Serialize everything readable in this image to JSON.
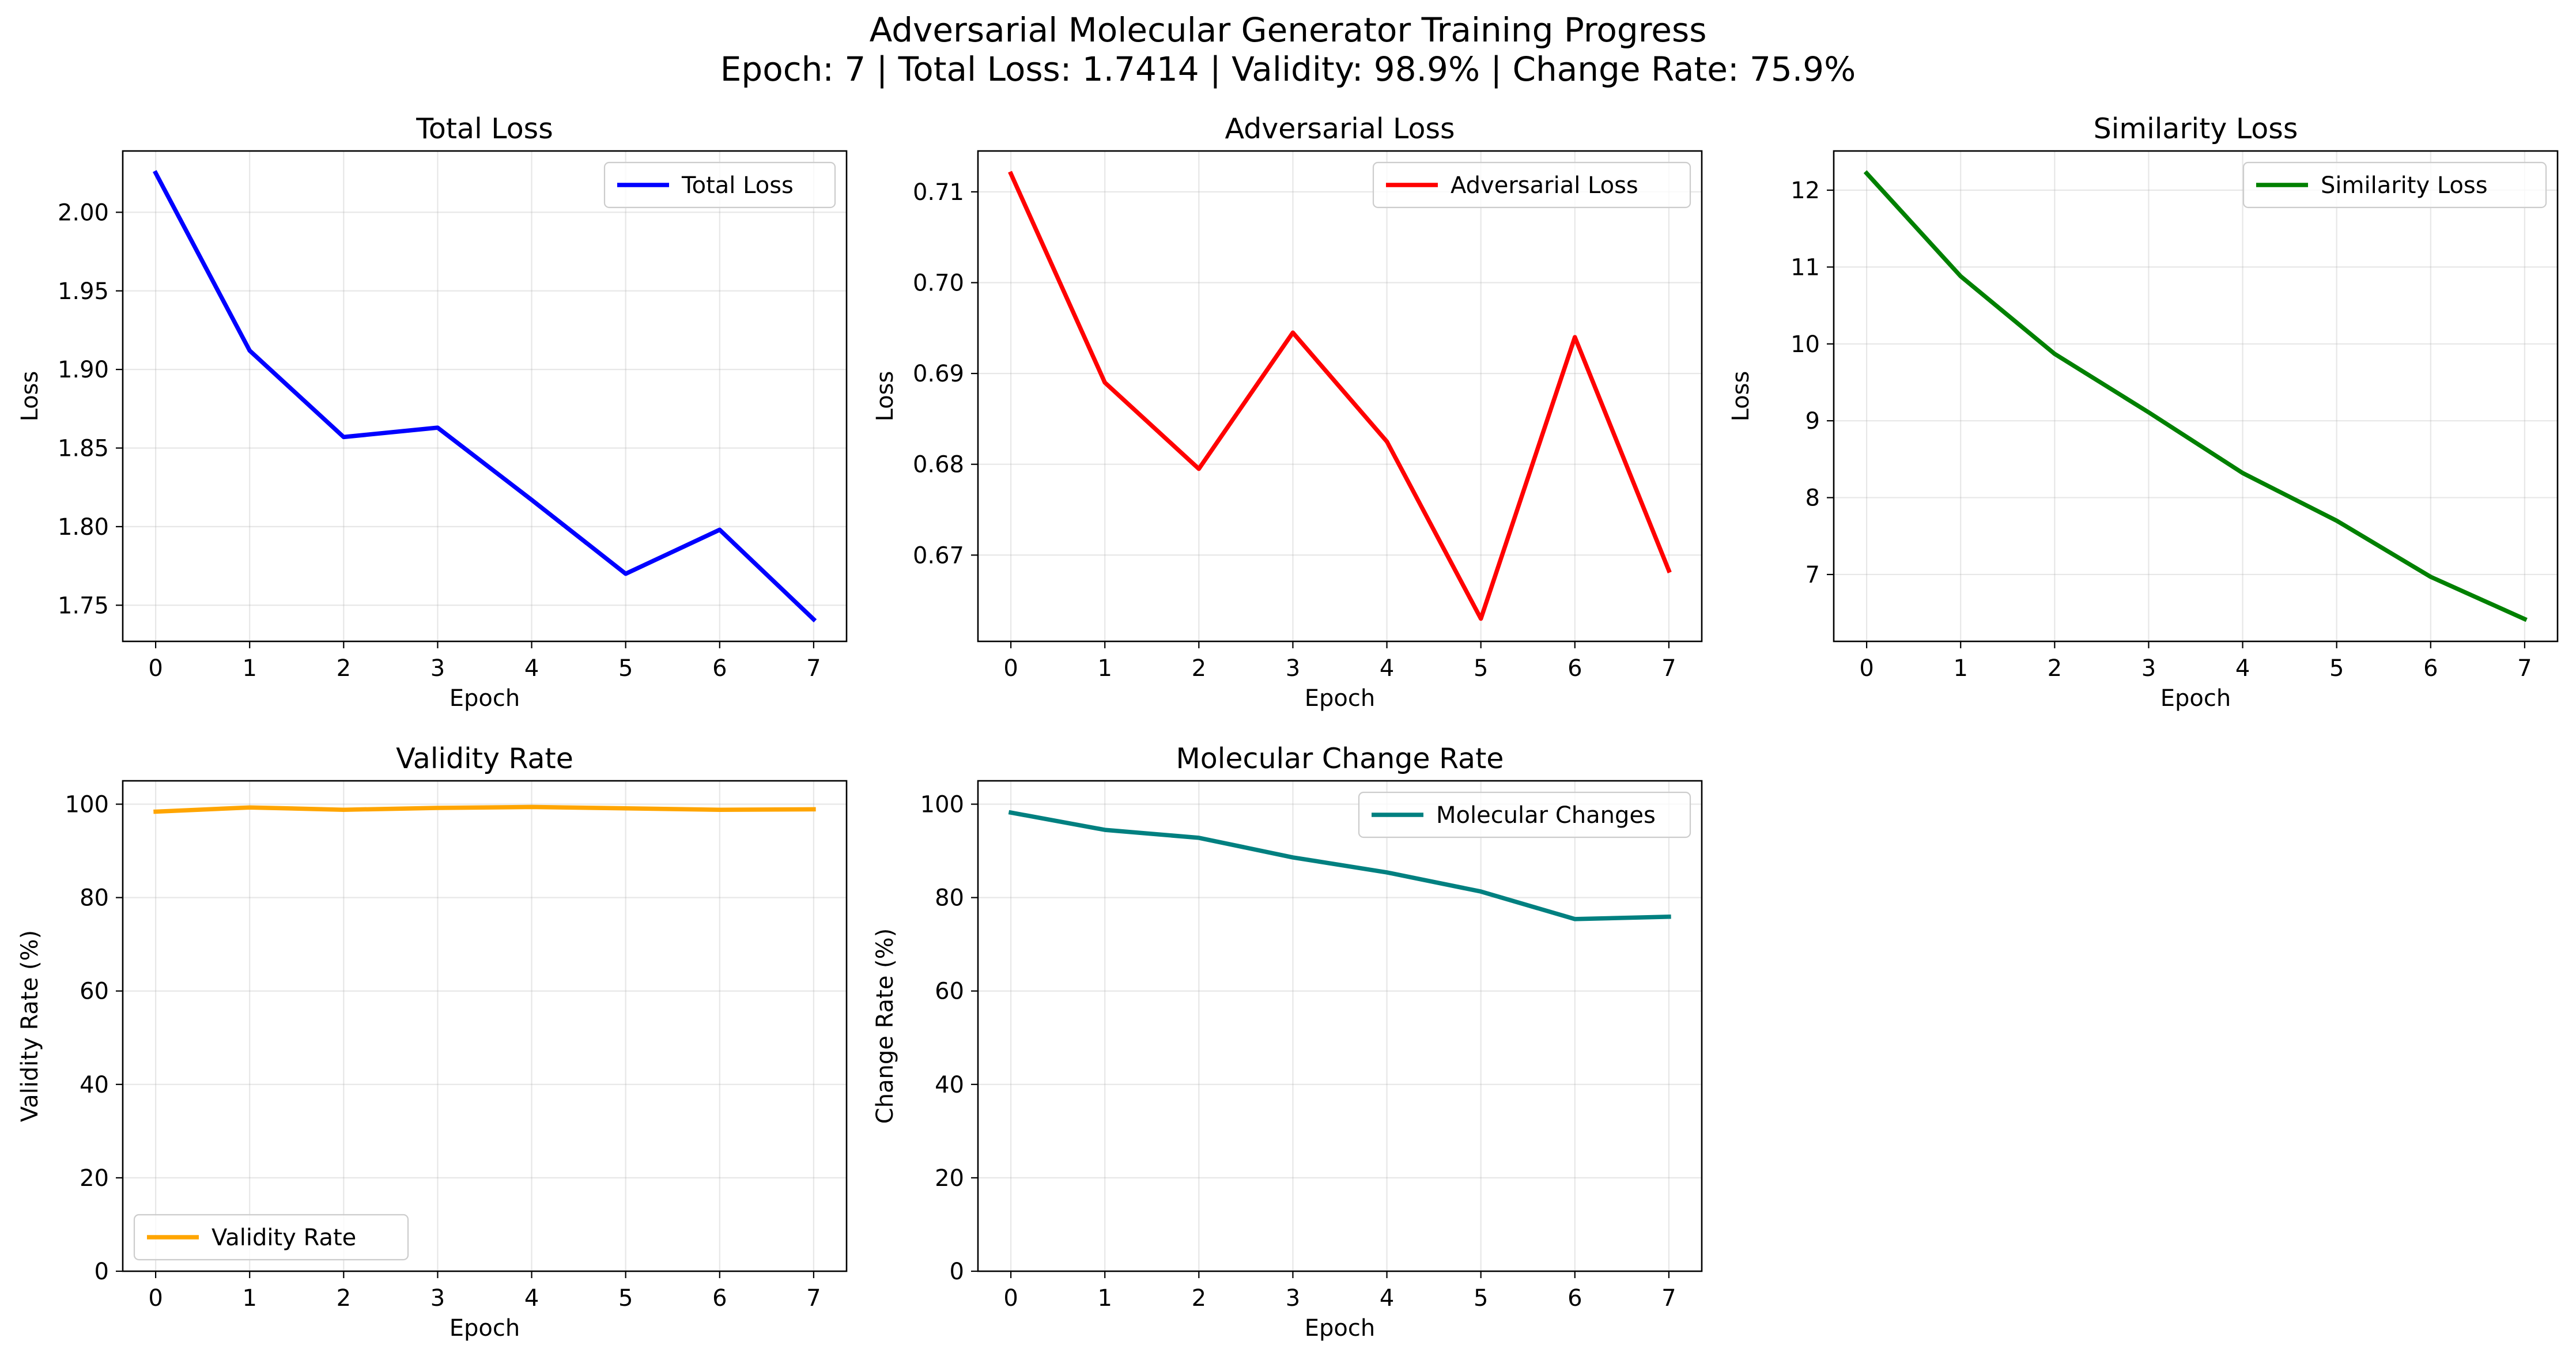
{
  "figure": {
    "title_line1": "Adversarial Molecular Generator Training Progress",
    "title_line2": "Epoch: 7 | Total Loss: 1.7414 | Validity: 98.9% | Change Rate: 75.9%"
  },
  "chart_data": [
    {
      "type": "line",
      "title": "Total Loss",
      "xlabel": "Epoch",
      "ylabel": "Loss",
      "x": [
        0,
        1,
        2,
        3,
        4,
        5,
        6,
        7
      ],
      "xlim": [
        -0.35,
        7.35
      ],
      "ylim": [
        1.727,
        2.039
      ],
      "yticks": [
        1.75,
        1.8,
        1.85,
        1.9,
        1.95,
        2.0
      ],
      "ytick_labels": [
        "1.75",
        "1.80",
        "1.85",
        "1.90",
        "1.95",
        "2.00"
      ],
      "grid": true,
      "legend": "upper right",
      "series": [
        {
          "name": "Total Loss",
          "color": "#0000ff",
          "values": [
            2.025,
            1.912,
            1.857,
            1.863,
            1.817,
            1.77,
            1.798,
            1.741
          ]
        }
      ]
    },
    {
      "type": "line",
      "title": "Adversarial Loss",
      "xlabel": "Epoch",
      "ylabel": "Loss",
      "x": [
        0,
        1,
        2,
        3,
        4,
        5,
        6,
        7
      ],
      "xlim": [
        -0.35,
        7.35
      ],
      "ylim": [
        0.6605,
        0.7145
      ],
      "yticks": [
        0.67,
        0.68,
        0.69,
        0.7,
        0.71
      ],
      "ytick_labels": [
        "0.67",
        "0.68",
        "0.69",
        "0.70",
        "0.71"
      ],
      "grid": true,
      "legend": "upper right",
      "series": [
        {
          "name": "Adversarial Loss",
          "color": "#ff0000",
          "values": [
            0.712,
            0.689,
            0.6795,
            0.6945,
            0.6825,
            0.663,
            0.694,
            0.6683
          ]
        }
      ]
    },
    {
      "type": "line",
      "title": "Similarity Loss",
      "xlabel": "Epoch",
      "ylabel": "Loss",
      "x": [
        0,
        1,
        2,
        3,
        4,
        5,
        6,
        7
      ],
      "xlim": [
        -0.35,
        7.35
      ],
      "ylim": [
        6.13,
        12.51
      ],
      "yticks": [
        7,
        8,
        9,
        10,
        11,
        12
      ],
      "ytick_labels": [
        "7",
        "8",
        "9",
        "10",
        "11",
        "12"
      ],
      "grid": true,
      "legend": "upper right",
      "series": [
        {
          "name": "Similarity Loss",
          "color": "#008000",
          "values": [
            12.22,
            10.88,
            9.87,
            9.11,
            8.32,
            7.7,
            6.97,
            6.42
          ]
        }
      ]
    },
    {
      "type": "line",
      "title": "Validity Rate",
      "xlabel": "Epoch",
      "ylabel": "Validity Rate (%)",
      "x": [
        0,
        1,
        2,
        3,
        4,
        5,
        6,
        7
      ],
      "xlim": [
        -0.35,
        7.35
      ],
      "ylim": [
        0,
        105
      ],
      "yticks": [
        0,
        20,
        40,
        60,
        80,
        100
      ],
      "ytick_labels": [
        "0",
        "20",
        "40",
        "60",
        "80",
        "100"
      ],
      "grid": true,
      "legend": "lower left",
      "series": [
        {
          "name": "Validity Rate",
          "color": "#ffa500",
          "values": [
            98.4,
            99.3,
            98.8,
            99.2,
            99.4,
            99.1,
            98.8,
            98.9
          ]
        }
      ]
    },
    {
      "type": "line",
      "title": "Molecular Change Rate",
      "xlabel": "Epoch",
      "ylabel": "Change Rate (%)",
      "x": [
        0,
        1,
        2,
        3,
        4,
        5,
        6,
        7
      ],
      "xlim": [
        -0.35,
        7.35
      ],
      "ylim": [
        0,
        105
      ],
      "yticks": [
        0,
        20,
        40,
        60,
        80,
        100
      ],
      "ytick_labels": [
        "0",
        "20",
        "40",
        "60",
        "80",
        "100"
      ],
      "grid": true,
      "legend": "upper right",
      "series": [
        {
          "name": "Molecular Changes",
          "color": "#008080",
          "values": [
            98.2,
            94.5,
            92.8,
            88.6,
            85.4,
            81.3,
            75.4,
            75.9
          ]
        }
      ]
    }
  ]
}
